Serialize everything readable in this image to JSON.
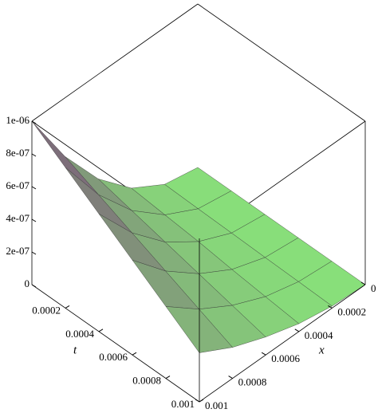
{
  "chart_data": {
    "type": "surface",
    "t_label": "t",
    "x_label": "x",
    "t": [
      0,
      0.0002,
      0.0004,
      0.0006,
      0.0008,
      0.001
    ],
    "x": [
      0,
      0.0002,
      0.0004,
      0.0006,
      0.0008,
      0.001
    ],
    "z": [
      [
        0,
        4e-08,
        1.6e-07,
        3.6e-07,
        6.4e-07,
        1e-06
      ],
      [
        0,
        3.4e-08,
        1.4e-07,
        3.1e-07,
        5.5e-07,
        8.6e-07
      ],
      [
        0,
        2.9e-08,
        1.2e-07,
        2.6e-07,
        4.6e-07,
        7.2e-07
      ],
      [
        0,
        2.3e-08,
        9.3e-08,
        2.1e-07,
        3.7e-07,
        5.8e-07
      ],
      [
        0,
        1.8e-08,
        7e-08,
        1.6e-07,
        2.8e-07,
        4.4e-07
      ],
      [
        0,
        1.2e-08,
        4.8e-08,
        1.1e-07,
        1.9e-07,
        3e-07
      ]
    ],
    "tlim": [
      0,
      0.001
    ],
    "xlim": [
      0,
      0.001
    ],
    "zlim": [
      0,
      1e-06
    ],
    "tticks": [
      0.0002,
      0.0004,
      0.0006,
      0.0008,
      0.001
    ],
    "xticks": [
      0,
      0.0002,
      0.0004,
      0.0006,
      0.0008,
      0.001
    ],
    "zticks": [
      0,
      {
        "value": 2e-07,
        "label": "2e-07"
      },
      {
        "value": 4e-07,
        "label": "4e-07"
      },
      {
        "value": 6e-07,
        "label": "6e-07"
      },
      {
        "value": 8e-07,
        "label": "8e-07"
      },
      {
        "value": 1e-06,
        "label": "1e-06"
      }
    ],
    "color_high": "#7a4a7a",
    "color_low": "#88e07a"
  }
}
